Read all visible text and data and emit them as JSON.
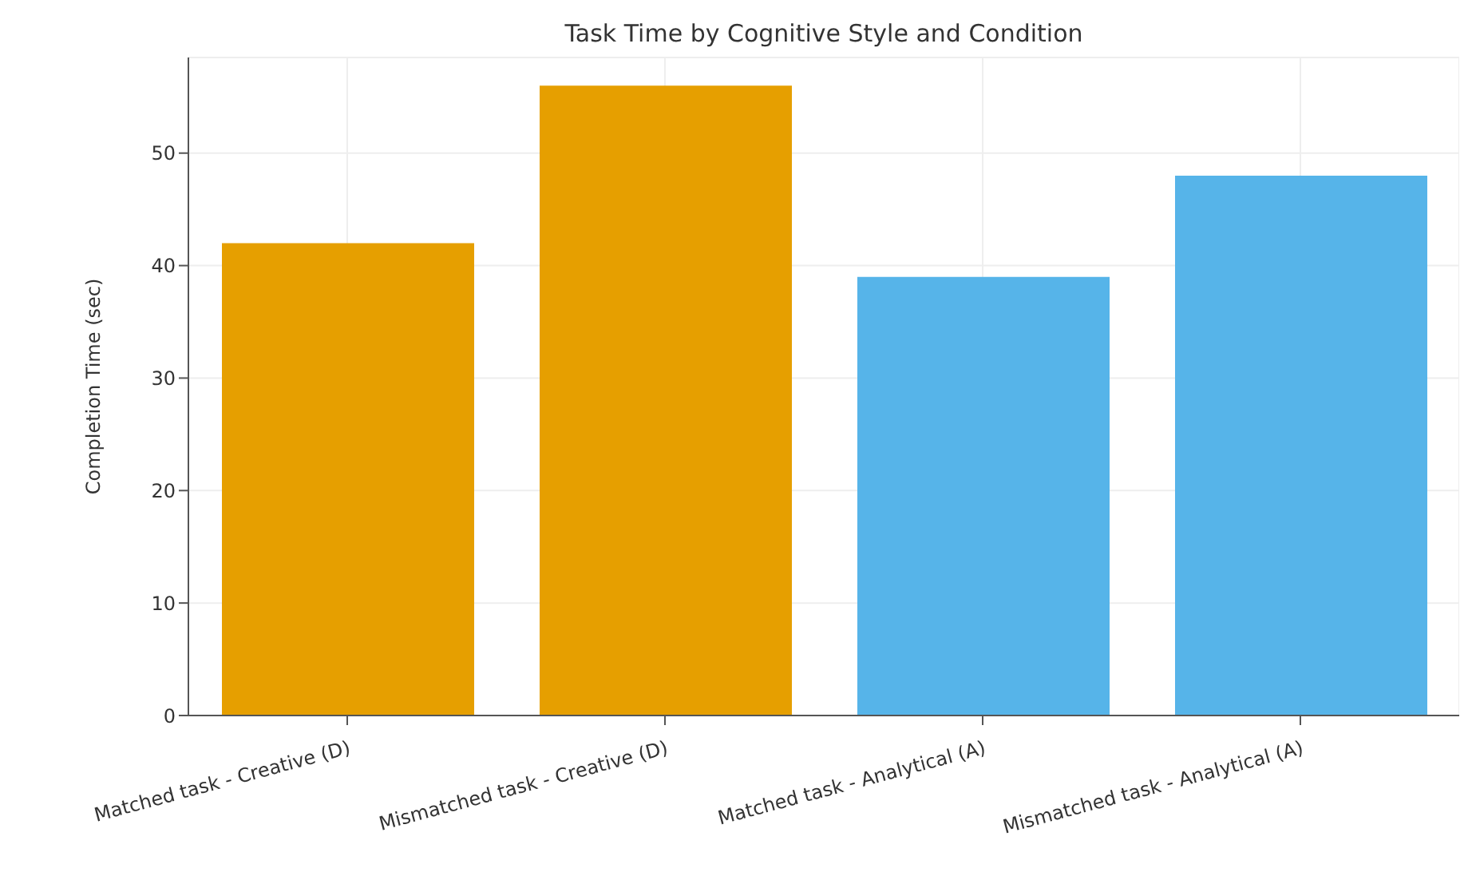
{
  "chart_data": {
    "type": "bar",
    "title": "Task Time by Cognitive Style and Condition",
    "ylabel": "Completion Time (sec)",
    "categories": [
      "Matched task - Creative (D)",
      "Mismatched task - Creative (D)",
      "Matched task - Analytical (A)",
      "Mismatched task - Analytical (A)"
    ],
    "values": [
      42,
      56,
      39,
      48
    ],
    "colors": [
      "#e69f00",
      "#e69f00",
      "#56b4e9",
      "#56b4e9"
    ],
    "ylim": [
      0,
      58.5
    ],
    "yticks": [
      0,
      10,
      20,
      30,
      40,
      50
    ],
    "grid": true
  }
}
